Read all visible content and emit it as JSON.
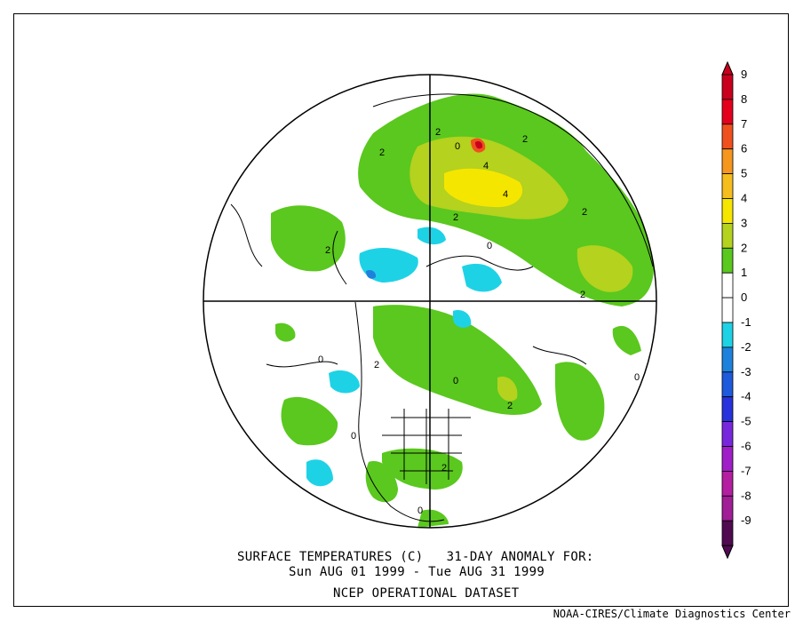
{
  "caption": {
    "line1": "SURFACE TEMPERATURES (C)   31-DAY ANOMALY FOR:",
    "line2": "Sun AUG 01 1999 - Tue AUG 31 1999",
    "line3": "NCEP OPERATIONAL DATASET"
  },
  "credit": "NOAA-CIRES/Climate Diagnostics Center",
  "legend": [
    {
      "label": "9",
      "color": "#c8001e"
    },
    {
      "label": "8",
      "color": "#e4001c"
    },
    {
      "label": "7",
      "color": "#f0501e"
    },
    {
      "label": "6",
      "color": "#f5961e"
    },
    {
      "label": "5",
      "color": "#f5be1e"
    },
    {
      "label": "4",
      "color": "#f5e600"
    },
    {
      "label": "3",
      "color": "#b4d21e"
    },
    {
      "label": "2",
      "color": "#5ac81e"
    },
    {
      "label": "1",
      "color": "#ffffff"
    },
    {
      "label": "0",
      "color": "#ffffff"
    },
    {
      "label": "-1",
      "color": "#1ed2e6"
    },
    {
      "label": "-2",
      "color": "#1e82dc"
    },
    {
      "label": "-3",
      "color": "#1e5adc"
    },
    {
      "label": "-4",
      "color": "#2832dc"
    },
    {
      "label": "-5",
      "color": "#7828dc"
    },
    {
      "label": "-6",
      "color": "#a01ec8"
    },
    {
      "label": "-7",
      "color": "#b41ea0"
    },
    {
      "label": "-8",
      "color": "#a01e96"
    },
    {
      "label": "-9",
      "color": "#500a50"
    }
  ],
  "contour_labels": [
    "2",
    "2",
    "2",
    "2",
    "2",
    "2",
    "2",
    "2",
    "2",
    "2",
    "0",
    "0",
    "0",
    "0",
    "0",
    "0",
    "0",
    "4",
    "4"
  ],
  "colors": {
    "positive": "#5ac81e",
    "warm": "#b4d21e",
    "hot": "#f5e600",
    "negative": "#1ed2e6",
    "frame": "#000000"
  }
}
